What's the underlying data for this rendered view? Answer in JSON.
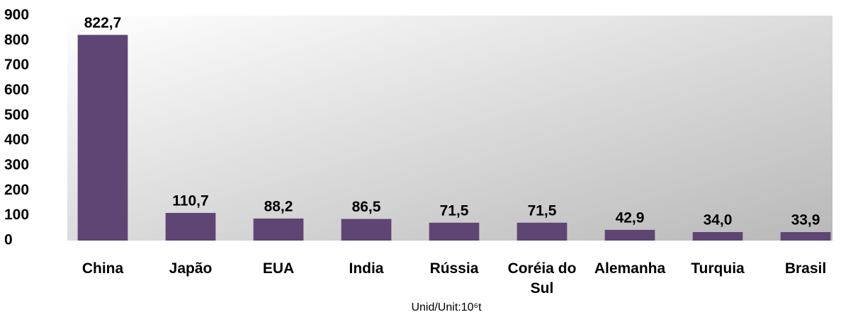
{
  "chart_data": {
    "type": "bar",
    "categories": [
      "China",
      "Japão",
      "EUA",
      "India",
      "Rússia",
      "Coréia do Sul",
      "Alemanha",
      "Turquia",
      "Brasil"
    ],
    "values": [
      822.7,
      110.7,
      88.2,
      86.5,
      71.5,
      71.5,
      42.9,
      34.0,
      33.9
    ],
    "value_labels": [
      "822,7",
      "110,7",
      "88,2",
      "86,5",
      "71,5",
      "71,5",
      "42,9",
      "34,0",
      "33,9"
    ],
    "color": "#5e4573",
    "ylim": [
      0,
      900
    ],
    "yticks": [
      0,
      100,
      200,
      300,
      400,
      500,
      600,
      700,
      800,
      900
    ],
    "grid": false,
    "x_label": "Unid/Unit:10⁶t"
  }
}
